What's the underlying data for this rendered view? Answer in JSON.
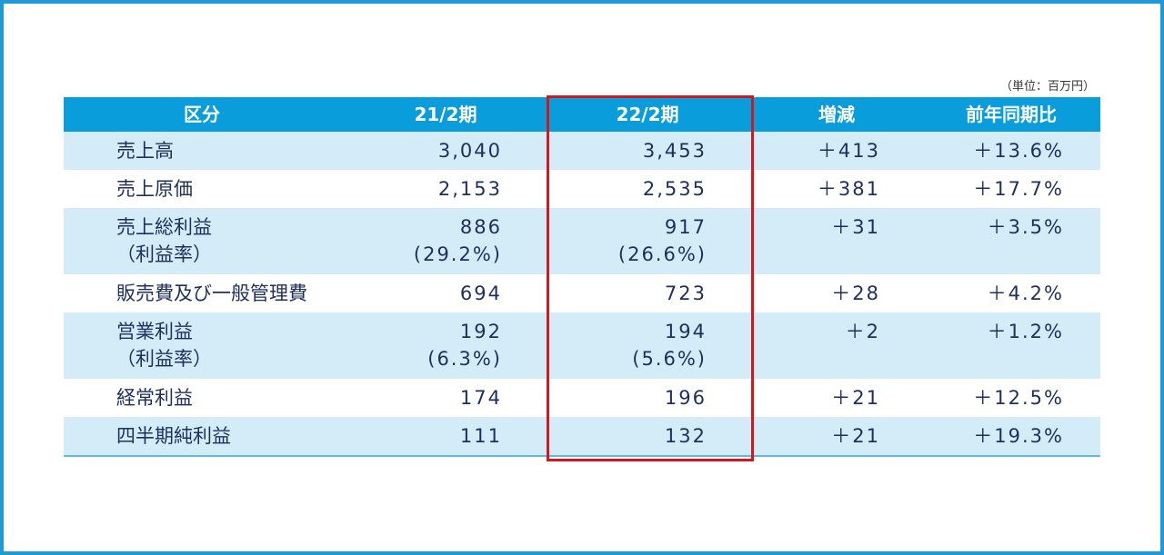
{
  "unit_note": "（単位：百万円）",
  "table": {
    "header": [
      "区分",
      "21/2期",
      "22/2期",
      "増減",
      "前年同期比"
    ],
    "rows": [
      [
        [
          "売上高"
        ],
        [
          "3,040"
        ],
        [
          "3,453"
        ],
        [
          "＋413"
        ],
        [
          "＋13.6%"
        ]
      ],
      [
        [
          "売上原価"
        ],
        [
          "2,153"
        ],
        [
          "2,535"
        ],
        [
          "＋381"
        ],
        [
          "＋17.7%"
        ]
      ],
      [
        [
          "売上総利益",
          "（利益率）"
        ],
        [
          "886",
          "(29.2%)"
        ],
        [
          "917",
          "(26.6%)"
        ],
        [
          "＋31"
        ],
        [
          "＋3.5%"
        ]
      ],
      [
        [
          "販売費及び一般管理費"
        ],
        [
          "694"
        ],
        [
          "723"
        ],
        [
          "＋28"
        ],
        [
          "＋4.2%"
        ]
      ],
      [
        [
          "営業利益",
          "（利益率）"
        ],
        [
          "192",
          "(6.3%)"
        ],
        [
          "194",
          "(5.6%)"
        ],
        [
          "＋2"
        ],
        [
          "＋1.2%"
        ]
      ],
      [
        [
          "経常利益"
        ],
        [
          "174"
        ],
        [
          "196"
        ],
        [
          "＋21"
        ],
        [
          "＋12.5%"
        ]
      ],
      [
        [
          "四半期純利益"
        ],
        [
          "111"
        ],
        [
          "132"
        ],
        [
          "＋21"
        ],
        [
          "＋19.3%"
        ]
      ]
    ]
  }
}
